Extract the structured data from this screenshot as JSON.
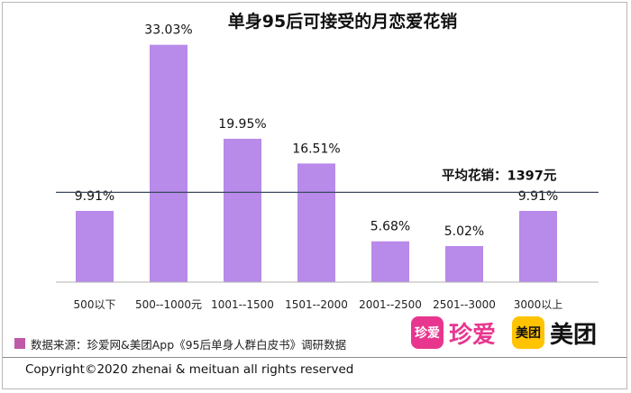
{
  "chart_data": {
    "type": "bar",
    "title": "单身95后可接受的月恋爱花销",
    "categories": [
      "500以下",
      "500--1000元",
      "1001--1500",
      "1501--2000",
      "2001--2500",
      "2501--3000",
      "3000以上"
    ],
    "values": [
      9.91,
      33.03,
      19.95,
      16.51,
      5.68,
      5.02,
      9.91
    ],
    "value_labels": [
      "9.91%",
      "33.03%",
      "19.95%",
      "16.51%",
      "5.68%",
      "5.02%",
      "9.91%"
    ],
    "ylim": [
      0,
      36
    ],
    "xlabel": "",
    "ylabel": "",
    "grid": false,
    "bar_color": "#b88aea",
    "reference_line": {
      "label": "平均花销：1397元",
      "value": 12.5
    }
  },
  "footer": {
    "source": "数据来源：珍爱网&美团App《95后单身人群白皮书》调研数据",
    "copyright": "Copyright©2020 zhenai & meituan all rights reserved",
    "legend_color": "#c05aa8"
  },
  "logos": {
    "zhenai_tile": "珍爱",
    "zhenai_word": "珍爱",
    "zhenai_color": "#e8368f",
    "meituan_tile": "美团",
    "meituan_word": "美团",
    "meituan_color": "#ffc300"
  }
}
